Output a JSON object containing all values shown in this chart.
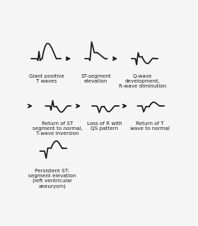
{
  "background_color": "#f5f5f5",
  "text_color": "#1a1a1a",
  "line_color": "#1a1a1a",
  "labels": {
    "ecg1": "Giant positive\nT waves",
    "ecg2": "ST-segment\nelevation",
    "ecg3": "Q-wave\ndevelopment,\nR-wave diminution",
    "ecg4": "Return of ST\nsegment to normal,\nT-wave inversion",
    "ecg5": "Loss of R with\nQS pattern",
    "ecg6": "Return of T\nwave to normal",
    "ecg7": "Persistent ST-\nsegment elevation\n(left ventricular\naneurysm)"
  },
  "font_size": 5.2,
  "line_width": 1.3
}
